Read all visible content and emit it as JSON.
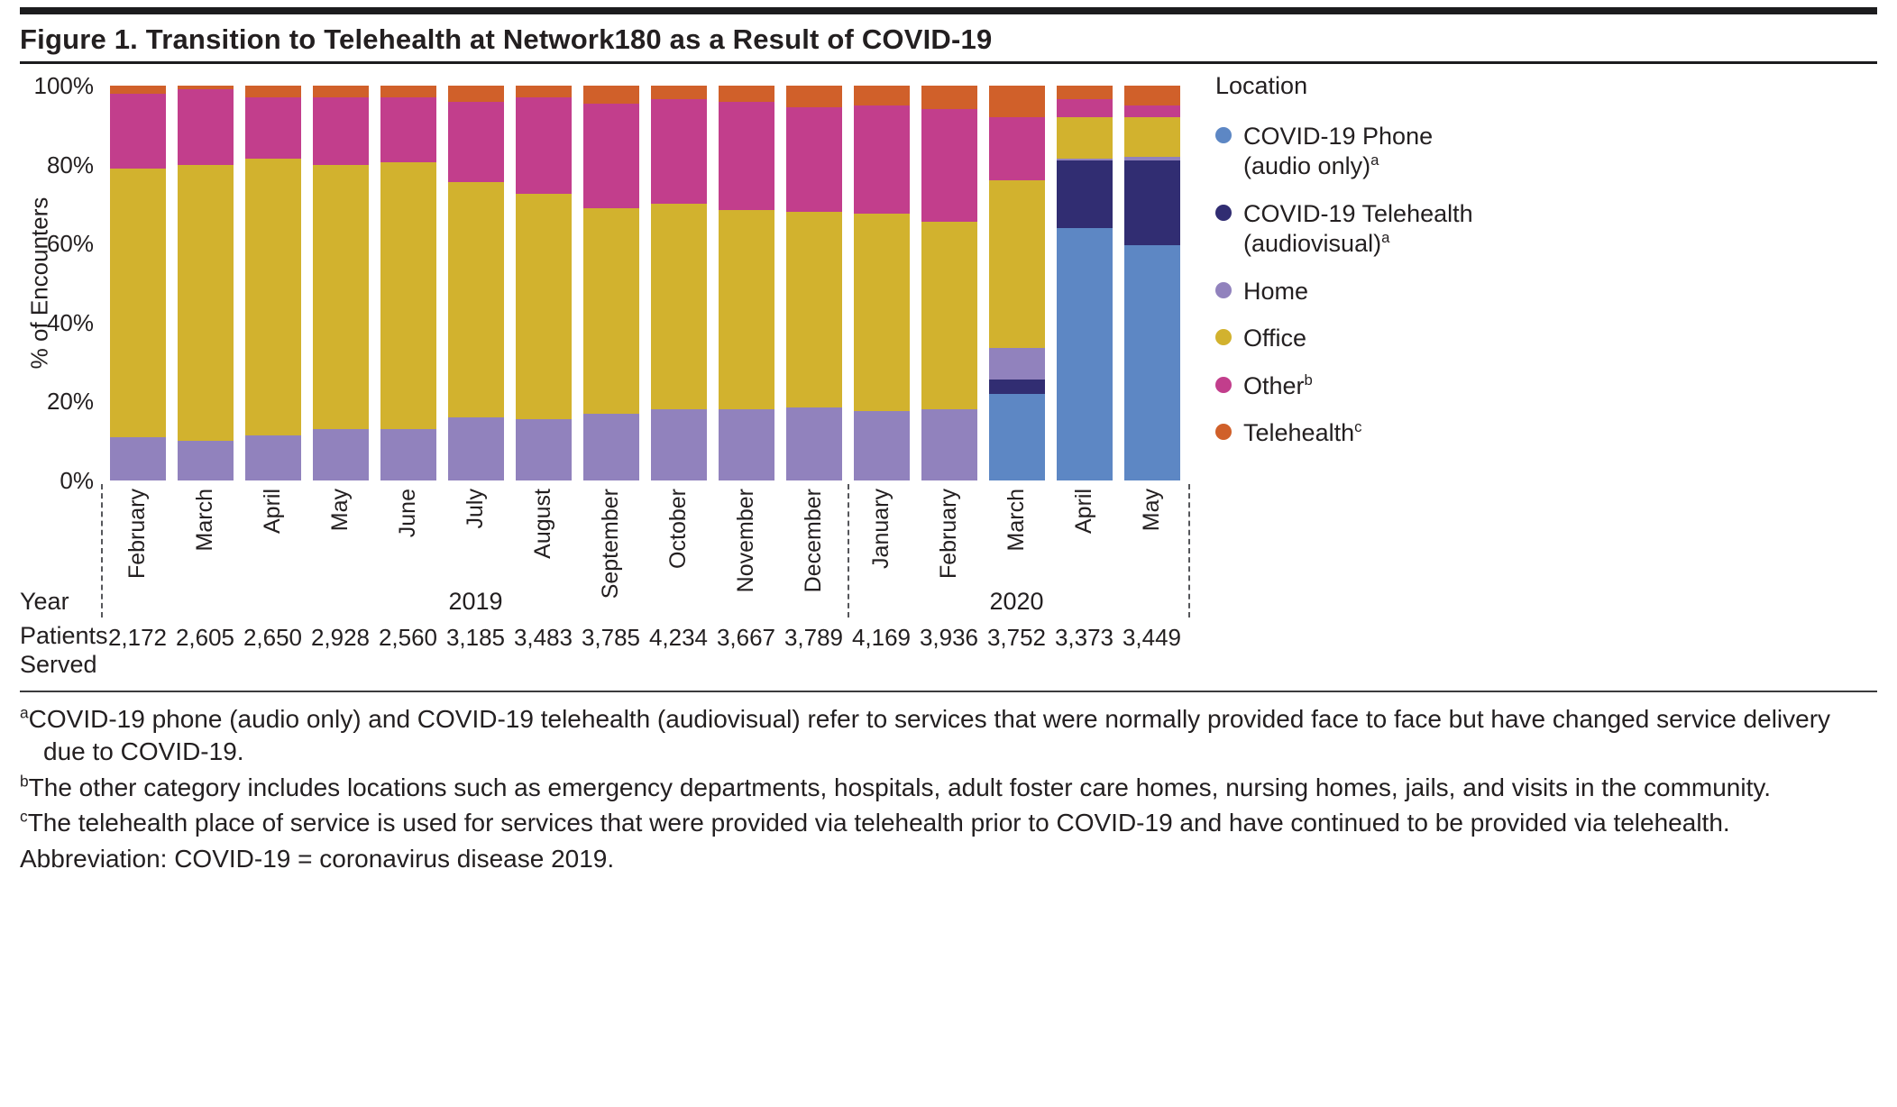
{
  "figure": {
    "title": "Figure 1. Transition to Telehealth at Network180 as a Result of COVID-19"
  },
  "chart_data": {
    "type": "bar",
    "stacked": true,
    "percent": true,
    "title": "Figure 1. Transition to Telehealth at Network180 as a Result of COVID-19",
    "ylabel": "% of Encounters",
    "ylim": [
      0,
      100
    ],
    "yticks": [
      "0%",
      "20%",
      "40%",
      "60%",
      "80%",
      "100%"
    ],
    "grid": false,
    "legend_position": "right",
    "categories": [
      "February",
      "March",
      "April",
      "May",
      "June",
      "July",
      "August",
      "September",
      "October",
      "November",
      "December",
      "January",
      "February",
      "March",
      "April",
      "May"
    ],
    "year_groups": [
      {
        "label": "2019",
        "start": 0,
        "end": 10
      },
      {
        "label": "2020",
        "start": 11,
        "end": 15
      }
    ],
    "patients_served": [
      "2,172",
      "2,605",
      "2,650",
      "2,928",
      "2,560",
      "3,185",
      "3,483",
      "3,785",
      "4,234",
      "3,667",
      "3,789",
      "4,169",
      "3,936",
      "3,752",
      "3,373",
      "3,449"
    ],
    "series": [
      {
        "name": "COVID-19 Phone (audio only)",
        "color": "#5d87c4",
        "values": [
          0,
          0,
          0,
          0,
          0,
          0,
          0,
          0,
          0,
          0,
          0,
          0,
          0,
          22,
          64,
          59.5
        ]
      },
      {
        "name": "COVID-19 Telehealth (audiovisual)",
        "color": "#312d72",
        "values": [
          0,
          0,
          0,
          0,
          0,
          0,
          0,
          0,
          0,
          0,
          0,
          0,
          0,
          3.5,
          17,
          21.5
        ]
      },
      {
        "name": "Home",
        "color": "#9182bd",
        "values": [
          11,
          10,
          11.5,
          13,
          13,
          16,
          15.5,
          17,
          18,
          18,
          18.5,
          17.5,
          18,
          8,
          0.5,
          1
        ]
      },
      {
        "name": "Office",
        "color": "#d2b22e",
        "values": [
          68,
          70,
          70,
          67,
          67.5,
          59.5,
          57,
          52,
          52,
          50.5,
          49.5,
          50,
          47.5,
          42.5,
          10.5,
          10
        ]
      },
      {
        "name": "Other",
        "color": "#c23e8c",
        "values": [
          19,
          19,
          15.5,
          17,
          16.5,
          20.5,
          24.5,
          26.5,
          26.5,
          27.5,
          26.5,
          27.5,
          28.5,
          16,
          4.5,
          3
        ]
      },
      {
        "name": "Telehealth",
        "color": "#d0602a",
        "values": [
          2,
          1,
          3,
          3,
          3,
          4,
          3,
          4.5,
          3.5,
          4,
          5.5,
          5,
          6,
          8,
          3.5,
          5
        ]
      }
    ],
    "legend": {
      "title": "Location",
      "entries": [
        {
          "lines": [
            "COVID-19 Phone",
            "(audio only)"
          ],
          "sup": "a",
          "color": "#5d87c4"
        },
        {
          "lines": [
            "COVID-19 Telehealth",
            "(audiovisual)"
          ],
          "sup": "a",
          "color": "#312d72"
        },
        {
          "lines": [
            "Home"
          ],
          "sup": "",
          "color": "#9182bd"
        },
        {
          "lines": [
            "Office"
          ],
          "sup": "",
          "color": "#d2b22e"
        },
        {
          "lines": [
            "Other"
          ],
          "sup": "b",
          "color": "#c23e8c"
        },
        {
          "lines": [
            "Telehealth"
          ],
          "sup": "c",
          "color": "#d0602a"
        }
      ]
    },
    "axis_rows": {
      "year_label": "Year",
      "patients_label": "Patients Served"
    }
  },
  "footnotes": [
    {
      "sup": "a",
      "text": "COVID-19 phone (audio only) and COVID-19 telehealth (audiovisual) refer to services that were normally provided face to face but have changed service delivery due to COVID-19."
    },
    {
      "sup": "b",
      "text": "The other category includes locations such as emergency departments, hospitals, adult foster care homes, nursing homes, jails, and visits in the community."
    },
    {
      "sup": "c",
      "text": "The telehealth place of service is used for services that were provided via telehealth prior to COVID-19 and have continued to be provided via telehealth."
    },
    {
      "sup": "",
      "text": "Abbreviation: COVID-19 = coronavirus disease 2019."
    }
  ]
}
